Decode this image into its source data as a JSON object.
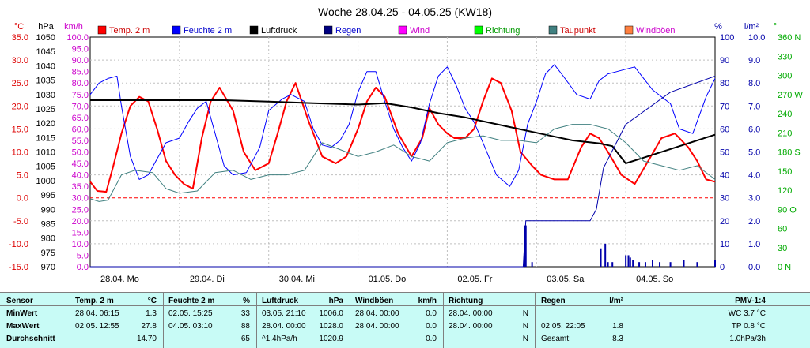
{
  "chart_data": {
    "type": "line",
    "title": "Woche 28.04.25 - 04.05.25 (KW18)",
    "x_range": [
      0,
      7
    ],
    "x_ticks": [
      {
        "x": 0,
        "label": "28.04.  Mo"
      },
      {
        "x": 1,
        "label": "29.04.  Di"
      },
      {
        "x": 2,
        "label": "30.04.  Mi"
      },
      {
        "x": 3,
        "label": "01.05.  Do"
      },
      {
        "x": 4,
        "label": "02.05.  Fr"
      },
      {
        "x": 5,
        "label": "03.05.  Sa"
      },
      {
        "x": 6,
        "label": "04.05.  So"
      }
    ],
    "axes": [
      {
        "id": "temp",
        "unit": "°C",
        "color": "#dd0000",
        "range": [
          -15,
          35
        ],
        "ticks": [
          "35.0",
          "30.0",
          "25.0",
          "20.0",
          "15.0",
          "10.0",
          "5.0",
          "0.0",
          "-5.0",
          "-10.0",
          "-15.0"
        ]
      },
      {
        "id": "hpa",
        "unit": "hPa",
        "color": "#000000",
        "range": [
          970,
          1050
        ],
        "ticks": [
          "1050",
          "1045",
          "1040",
          "1035",
          "1030",
          "1025",
          "1020",
          "1015",
          "1010",
          "1005",
          "1000",
          "995",
          "990",
          "985",
          "980",
          "975",
          "970"
        ]
      },
      {
        "id": "kmh",
        "unit": "km/h",
        "color": "#cc00cc",
        "range": [
          0,
          100
        ],
        "ticks": [
          "100.0",
          "95.0",
          "90.0",
          "85.0",
          "80.0",
          "75.0",
          "70.0",
          "65.0",
          "60.0",
          "55.0",
          "50.0",
          "45.0",
          "40.0",
          "35.0",
          "30.0",
          "25.0",
          "20.0",
          "15.0",
          "10.0",
          "5.0",
          "0.0"
        ]
      },
      {
        "id": "pct",
        "unit": "%",
        "color": "#0000aa",
        "range": [
          0,
          100
        ],
        "ticks": [
          "100",
          "90",
          "80",
          "70",
          "60",
          "50",
          "40",
          "30",
          "20",
          "10",
          "0"
        ]
      },
      {
        "id": "lm2",
        "unit": "l/m²",
        "color": "#0000aa",
        "range": [
          0,
          10
        ],
        "ticks": [
          "10.0",
          "9.0",
          "8.0",
          "7.0",
          "6.0",
          "5.0",
          "4.0",
          "3.0",
          "2.0",
          "1.0",
          "0.0"
        ]
      },
      {
        "id": "deg",
        "unit": "°",
        "color": "#00aa00",
        "range": [
          0,
          360
        ],
        "ticks": [
          "360 N",
          "330",
          "300",
          "270 W",
          "240",
          "210",
          "180 S",
          "150",
          "120",
          "90 O",
          "60",
          "30",
          "0  N"
        ]
      }
    ],
    "legend": [
      {
        "name": "Temp. 2 m",
        "color": "#ff0000"
      },
      {
        "name": "Feuchte  2 m",
        "color": "#0000ff"
      },
      {
        "name": "Luftdruck",
        "color": "#000000"
      },
      {
        "name": "Regen",
        "color": "#000080"
      },
      {
        "name": "Wind",
        "color": "#ff00ff"
      },
      {
        "name": "Richtung",
        "color": "#00ff00"
      },
      {
        "name": "Taupunkt",
        "color": "#408080"
      },
      {
        "name": "Windböen",
        "color": "#ff8040"
      }
    ],
    "series": [
      {
        "id": "temp",
        "axis": "temp",
        "color": "#ff0000",
        "width": 2,
        "x": [
          0,
          0.08,
          0.18,
          0.26,
          0.35,
          0.45,
          0.55,
          0.65,
          0.75,
          0.85,
          0.95,
          1.05,
          1.15,
          1.25,
          1.35,
          1.45,
          1.6,
          1.72,
          1.85,
          2.0,
          2.1,
          2.2,
          2.3,
          2.45,
          2.6,
          2.75,
          2.87,
          3.0,
          3.1,
          3.2,
          3.3,
          3.45,
          3.6,
          3.72,
          3.8,
          3.9,
          4.0,
          4.08,
          4.2,
          4.3,
          4.4,
          4.5,
          4.6,
          4.72,
          4.82,
          4.95,
          5.05,
          5.2,
          5.35,
          5.5,
          5.6,
          5.7,
          5.8,
          5.95,
          6.1,
          6.25,
          6.4,
          6.55,
          6.7,
          6.8,
          6.9,
          7.0
        ],
        "y": [
          3.5,
          1.5,
          1.3,
          7,
          14,
          20,
          22,
          21,
          15,
          8,
          5,
          3,
          2,
          13,
          21,
          24,
          19,
          10,
          6,
          7.5,
          14,
          21,
          25,
          16.5,
          9,
          7.5,
          9,
          15,
          21,
          24,
          22,
          14,
          9,
          13,
          19.5,
          16,
          14,
          13,
          13,
          15,
          21,
          26,
          25,
          19,
          10,
          7,
          5,
          4,
          4,
          11,
          14,
          13,
          10,
          5,
          3,
          8,
          13,
          14,
          11,
          8,
          4,
          3.5
        ]
      },
      {
        "id": "feuchte",
        "axis": "pct",
        "color": "#0000ff",
        "width": 1,
        "x": [
          0,
          0.1,
          0.2,
          0.3,
          0.35,
          0.45,
          0.55,
          0.65,
          0.75,
          0.85,
          1.0,
          1.1,
          1.2,
          1.3,
          1.4,
          1.5,
          1.6,
          1.75,
          1.9,
          2.0,
          2.15,
          2.25,
          2.4,
          2.5,
          2.6,
          2.7,
          2.8,
          2.9,
          3.0,
          3.1,
          3.2,
          3.3,
          3.4,
          3.5,
          3.6,
          3.7,
          3.8,
          3.9,
          4.0,
          4.1,
          4.2,
          4.3,
          4.4,
          4.55,
          4.7,
          4.8,
          4.9,
          5.0,
          5.1,
          5.2,
          5.3,
          5.45,
          5.6,
          5.7,
          5.8,
          5.9,
          6.0,
          6.1,
          6.2,
          6.3,
          6.5,
          6.6,
          6.75,
          6.9,
          7.0
        ],
        "y": [
          75,
          80,
          82,
          83,
          70,
          48,
          38,
          40,
          47,
          54,
          56,
          63,
          69,
          72,
          58,
          44,
          40,
          41,
          52,
          68,
          73,
          75,
          72,
          60,
          53,
          52,
          55,
          62,
          76,
          85,
          85,
          72,
          60,
          52,
          46,
          54,
          71,
          83,
          87,
          79,
          69,
          63,
          54,
          40,
          35,
          42,
          62,
          72,
          84,
          88,
          83,
          75,
          73,
          81,
          84,
          85,
          86,
          87,
          82,
          77,
          71,
          60,
          58,
          74,
          82
        ]
      },
      {
        "id": "luftdruck",
        "axis": "hpa",
        "color": "#000000",
        "width": 2,
        "x": [
          0,
          0.5,
          1.0,
          1.5,
          2.0,
          2.5,
          3.0,
          3.3,
          3.6,
          3.9,
          4.2,
          4.5,
          4.8,
          5.1,
          5.4,
          5.7,
          5.85,
          6.0,
          6.2,
          6.5,
          6.8,
          7.0
        ],
        "y": [
          1028,
          1028,
          1028,
          1028,
          1027.5,
          1027,
          1026.5,
          1027,
          1025.5,
          1023.5,
          1022,
          1020,
          1018,
          1016,
          1014,
          1013,
          1012,
          1006,
          1008,
          1011,
          1014,
          1016
        ]
      },
      {
        "id": "taupunkt",
        "axis": "temp",
        "color": "#408080",
        "width": 1,
        "x": [
          0,
          0.1,
          0.2,
          0.35,
          0.5,
          0.7,
          0.85,
          1.0,
          1.2,
          1.4,
          1.6,
          1.8,
          2.0,
          2.2,
          2.4,
          2.6,
          2.8,
          3.0,
          3.2,
          3.4,
          3.6,
          3.8,
          4.0,
          4.2,
          4.4,
          4.6,
          4.8,
          5.0,
          5.2,
          5.4,
          5.6,
          5.8,
          6.0,
          6.2,
          6.4,
          6.6,
          6.8,
          7.0
        ],
        "y": [
          -0.2,
          -0.8,
          -0.5,
          5,
          6,
          5.5,
          2,
          1,
          1.5,
          5.5,
          6,
          4,
          5,
          5,
          6,
          12,
          10.5,
          9,
          10,
          11.5,
          9,
          8,
          12,
          13,
          13.5,
          12.5,
          12.5,
          12,
          15,
          16,
          16,
          15,
          12,
          8,
          7,
          6,
          7,
          4
        ]
      },
      {
        "id": "regen_sum",
        "axis": "lm2",
        "color": "#0000aa",
        "width": 1,
        "x": [
          0,
          4.85,
          4.88,
          5.0,
          5.5,
          5.6,
          5.67,
          5.75,
          6.0,
          6.5,
          7.0
        ],
        "y": [
          0,
          0,
          2.0,
          2.0,
          2.0,
          2.0,
          2.5,
          4.3,
          6.2,
          7.6,
          8.3
        ]
      },
      {
        "id": "regen_bars",
        "axis": "lm2",
        "color": "#0000aa",
        "kind": "bars",
        "x": [
          4.87,
          4.88,
          4.95,
          5.72,
          5.77,
          5.8,
          5.85,
          6.0,
          6.03,
          6.05,
          6.08,
          6.15,
          6.22,
          6.3,
          6.38,
          6.5,
          6.65,
          6.8,
          7.0
        ],
        "y": [
          1.8,
          1.8,
          0.2,
          0.8,
          1.0,
          0.2,
          0.2,
          0.5,
          0.5,
          0.4,
          0.3,
          0.2,
          0.2,
          0.3,
          0.2,
          0.2,
          0.3,
          0.2,
          0.3
        ]
      }
    ]
  },
  "stats": {
    "headers": {
      "sensor": "Sensor",
      "temp": "Temp.  2 m",
      "temp_unit": "°C",
      "feuchte": "Feuchte   2 m",
      "feuchte_unit": "%",
      "luftdruck": "Luftdruck",
      "luftdruck_unit": "hPa",
      "windboeen": "Windböen",
      "windboeen_unit": "km/h",
      "richtung": "Richtung",
      "regen": "Regen",
      "regen_unit": "l/m²",
      "pmv": "PMV-1:4"
    },
    "rows": [
      {
        "label": "MinWert",
        "temp_t": "28.04.  06:15",
        "temp_v": "1.3",
        "feuchte_t": "02.05.  15:25",
        "feuchte_v": "33",
        "luft_t": "03.05.  21:10",
        "luft_v": "1006.0",
        "wb_t": "28.04.  00:00",
        "wb_v": "0.0",
        "ri_t": "28.04.  00:00",
        "ri_v": "N",
        "rg_t": "",
        "rg_v": "",
        "pmv": "WC 3.7 °C"
      },
      {
        "label": "MaxWert",
        "temp_t": "02.05.  12:55",
        "temp_v": "27.8",
        "feuchte_t": "04.05.  03:10",
        "feuchte_v": "88",
        "luft_t": "28.04.  00:00",
        "luft_v": "1028.0",
        "wb_t": "28.04.  00:00",
        "wb_v": "0.0",
        "ri_t": "28.04.  00:00",
        "ri_v": "N",
        "rg_t": "02.05.  22:05",
        "rg_v": "1.8",
        "pmv": "TP 0.8 °C"
      },
      {
        "label": "Durchschnitt",
        "temp_t": "",
        "temp_v": "14.70",
        "feuchte_t": "",
        "feuchte_v": "65",
        "luft_t": "^1.4hPa/h",
        "luft_v": "1020.9",
        "wb_t": "",
        "wb_v": "0.0",
        "ri_t": "",
        "ri_v": "N",
        "rg_t": "Gesamt:",
        "rg_v": "8.3",
        "pmv": "1.0hPa/3h"
      }
    ]
  }
}
